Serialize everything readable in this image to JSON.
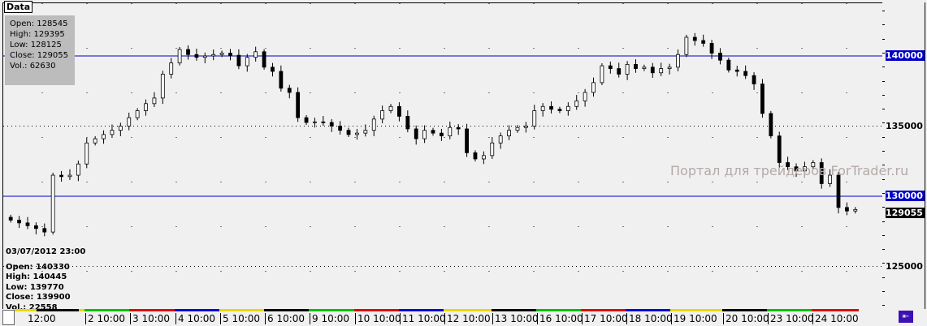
{
  "tag": "Data",
  "hover": {
    "open": "Open: 128545",
    "high": "High: 129395",
    "low": "Low: 128125",
    "close": "Close: 129055",
    "vol": "Vol.: 62630"
  },
  "cursor": {
    "date": "03/07/2012 23:00",
    "open": "Open: 140330",
    "high": "High: 140445",
    "low": "Low: 139770",
    "close": "Close: 139900",
    "vol": "Vol.: 22558"
  },
  "watermark": "Портал для трейдеров ForTrader.ru",
  "colors": {
    "up": "#ffffff",
    "down": "#000000",
    "hline": "#0000c8",
    "label_bg": "#0000c8",
    "last_bg": "#000000"
  },
  "chart_data": {
    "type": "candlestick",
    "ylim": [
      123500,
      143000
    ],
    "y_ticks": [
      "140000",
      "135000",
      "130000",
      "125000"
    ],
    "hlines": [
      140000,
      130000
    ],
    "dotted_lines": [
      135000,
      125000
    ],
    "last_price": "129055",
    "x_labels": [
      "12:00",
      "2 10:00",
      "3 10:00",
      "4 10:00",
      "5 10:00",
      "6 10:00",
      "9 10:00",
      "10 10:00",
      "11 10:00",
      "12 10:00",
      "13 10:00",
      "16 10:00",
      "17 10:00",
      "18 10:00",
      "19 10:00",
      "20 10:00",
      "23 10:00",
      "24 10:00"
    ],
    "session_colors": [
      "#e8d800",
      "#00c000",
      "#e00000",
      "#0000e0",
      "#e8d800",
      "#000000",
      "#00c000",
      "#e00000",
      "#0000e0",
      "#e8d800",
      "#000000",
      "#00c000",
      "#e00000",
      "#0000e0",
      "#e8d800",
      "#000000",
      "#00c000",
      "#e00000"
    ],
    "closes": [
      128300,
      128100,
      127900,
      127700,
      127450,
      131500,
      131400,
      131500,
      132300,
      133800,
      134100,
      134400,
      134700,
      135000,
      135600,
      136100,
      136600,
      137000,
      138700,
      139500,
      140460,
      140100,
      139900,
      140000,
      140100,
      140200,
      140050,
      139300,
      139900,
      140300,
      139200,
      138900,
      137700,
      137400,
      135600,
      135260,
      135300,
      135260,
      135000,
      134700,
      134400,
      134500,
      134700,
      135500,
      136100,
      136400,
      135700,
      134800,
      134100,
      134700,
      134500,
      134300,
      134900,
      134800,
      133100,
      132660,
      132900,
      133800,
      134300,
      134700,
      134900,
      135000,
      136100,
      136400,
      136200,
      136100,
      136400,
      136800,
      137400,
      138100,
      139300,
      139100,
      138700,
      139400,
      139100,
      139200,
      138800,
      139100,
      139200,
      140100,
      141330,
      141100,
      140900,
      140200,
      139700,
      139000,
      138900,
      138600,
      138000,
      135900,
      134300,
      132400,
      132100,
      131800,
      132100,
      132400,
      130900,
      131500,
      129200,
      128950,
      129055
    ]
  }
}
